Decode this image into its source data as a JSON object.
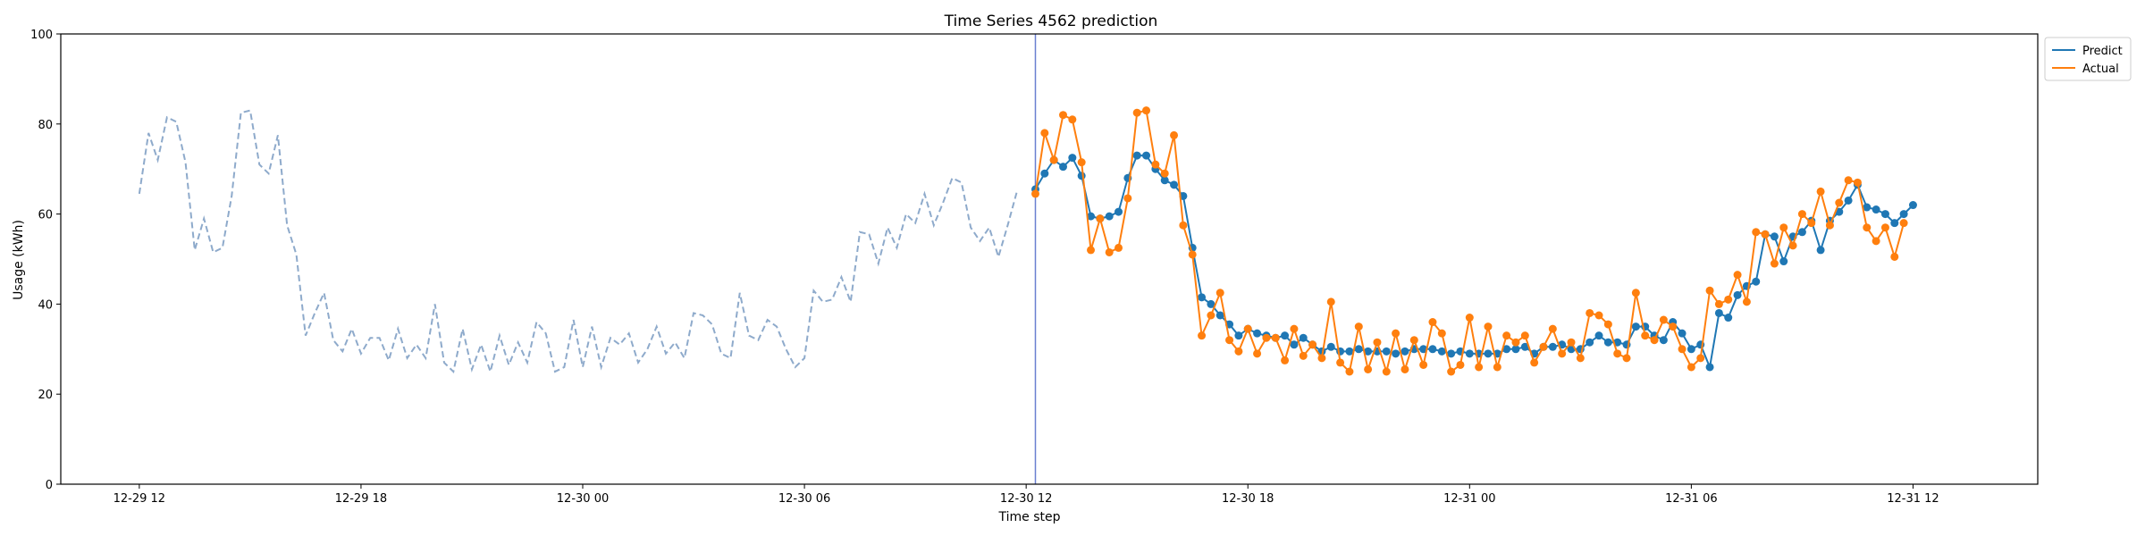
{
  "chart_data": {
    "type": "line",
    "title": "Time Series 4562 prediction",
    "xlabel": "Time step",
    "ylabel": "Usage (kWh)",
    "ylim": [
      0,
      100
    ],
    "yticks": [
      0,
      20,
      40,
      60,
      80,
      100
    ],
    "xlim": [
      -8.5,
      205.5
    ],
    "xticks": [
      {
        "x": 0,
        "label": "12-29 12"
      },
      {
        "x": 24,
        "label": "12-29 18"
      },
      {
        "x": 48,
        "label": "12-30 00"
      },
      {
        "x": 72,
        "label": "12-30 06"
      },
      {
        "x": 96,
        "label": "12-30 12"
      },
      {
        "x": 120,
        "label": "12-30 18"
      },
      {
        "x": 144,
        "label": "12-31 00"
      },
      {
        "x": 168,
        "label": "12-31 06"
      },
      {
        "x": 192,
        "label": "12-31 12"
      }
    ],
    "forecast_start": 97,
    "legend_position": "top-right",
    "history": {
      "x_start": 0,
      "values": [
        64.5,
        78,
        72,
        81.5,
        80.5,
        71.5,
        52,
        59,
        51.5,
        52.5,
        64,
        82.5,
        83,
        71,
        69,
        77.5,
        57.5,
        51,
        33,
        38,
        42.5,
        32,
        29.5,
        34.5,
        29,
        32.5,
        32.5,
        27.5,
        34.5,
        28,
        31,
        28,
        40,
        27,
        25,
        34.5,
        25.5,
        31,
        25,
        33,
        26.5,
        31.5,
        27,
        36,
        33.5,
        25,
        26,
        36.5,
        26,
        35,
        26,
        32.5,
        31,
        33.5,
        27,
        30,
        35,
        29,
        31.5,
        28,
        38,
        37.5,
        35.5,
        29,
        28,
        42.5,
        33,
        32,
        36.5,
        35,
        30,
        26,
        28,
        43,
        40.5,
        41,
        46,
        40.5,
        56,
        55.5,
        49,
        57,
        52.5,
        60,
        58,
        64.5,
        57.5,
        62.5,
        68,
        67,
        57,
        54,
        57,
        50.5,
        57.5,
        65
      ]
    },
    "series": [
      {
        "name": "Predict",
        "color": "#1f77b4",
        "x_start": 97,
        "values": [
          65.5,
          69,
          72,
          70.5,
          72.5,
          68.5,
          59.5,
          59,
          59.5,
          60.5,
          68,
          73,
          73,
          70,
          67.5,
          66.5,
          64,
          52.5,
          41.5,
          40,
          37.5,
          35.5,
          33,
          34.5,
          33.5,
          33,
          32.5,
          33,
          31,
          32.5,
          31,
          29.5,
          30.5,
          29.5,
          29.5,
          30,
          29.5,
          29.5,
          29.5,
          29,
          29.5,
          30,
          30,
          30,
          29.5,
          29,
          29.5,
          29,
          29,
          29,
          29,
          30,
          30,
          30.5,
          29,
          30.5,
          30.5,
          31,
          30,
          30,
          31.5,
          33,
          31.5,
          31.5,
          31,
          35,
          35,
          33,
          32,
          36,
          33.5,
          30,
          31,
          26,
          38,
          37,
          42,
          44,
          45,
          55.5,
          55,
          49.5,
          55,
          56,
          58.5,
          52,
          58.5,
          60.5,
          63,
          66.5,
          61.5,
          61,
          60,
          58,
          60,
          62
        ]
      },
      {
        "name": "Actual",
        "color": "#ff7f0e",
        "x_start": 97,
        "values": [
          64.5,
          78,
          72,
          82,
          81,
          71.5,
          52,
          59,
          51.5,
          52.5,
          63.5,
          82.5,
          83,
          71,
          69,
          77.5,
          57.5,
          51,
          33,
          37.5,
          42.5,
          32,
          29.5,
          34.5,
          29,
          32.5,
          32.5,
          27.5,
          34.5,
          28.5,
          31,
          28,
          40.5,
          27,
          25,
          35,
          25.5,
          31.5,
          25,
          33.5,
          25.5,
          32,
          26.5,
          36,
          33.5,
          25,
          26.5,
          37,
          26,
          35,
          26,
          33,
          31.5,
          33,
          27,
          30.5,
          34.5,
          29,
          31.5,
          28,
          38,
          37.5,
          35.5,
          29,
          28,
          42.5,
          33,
          32,
          36.5,
          35,
          30,
          26,
          28,
          43,
          40,
          41,
          46.5,
          40.5,
          56,
          55.5,
          49,
          57,
          53,
          60,
          58,
          65,
          57.5,
          62.5,
          67.5,
          67,
          57,
          54,
          57,
          50.5,
          58
        ]
      }
    ]
  }
}
